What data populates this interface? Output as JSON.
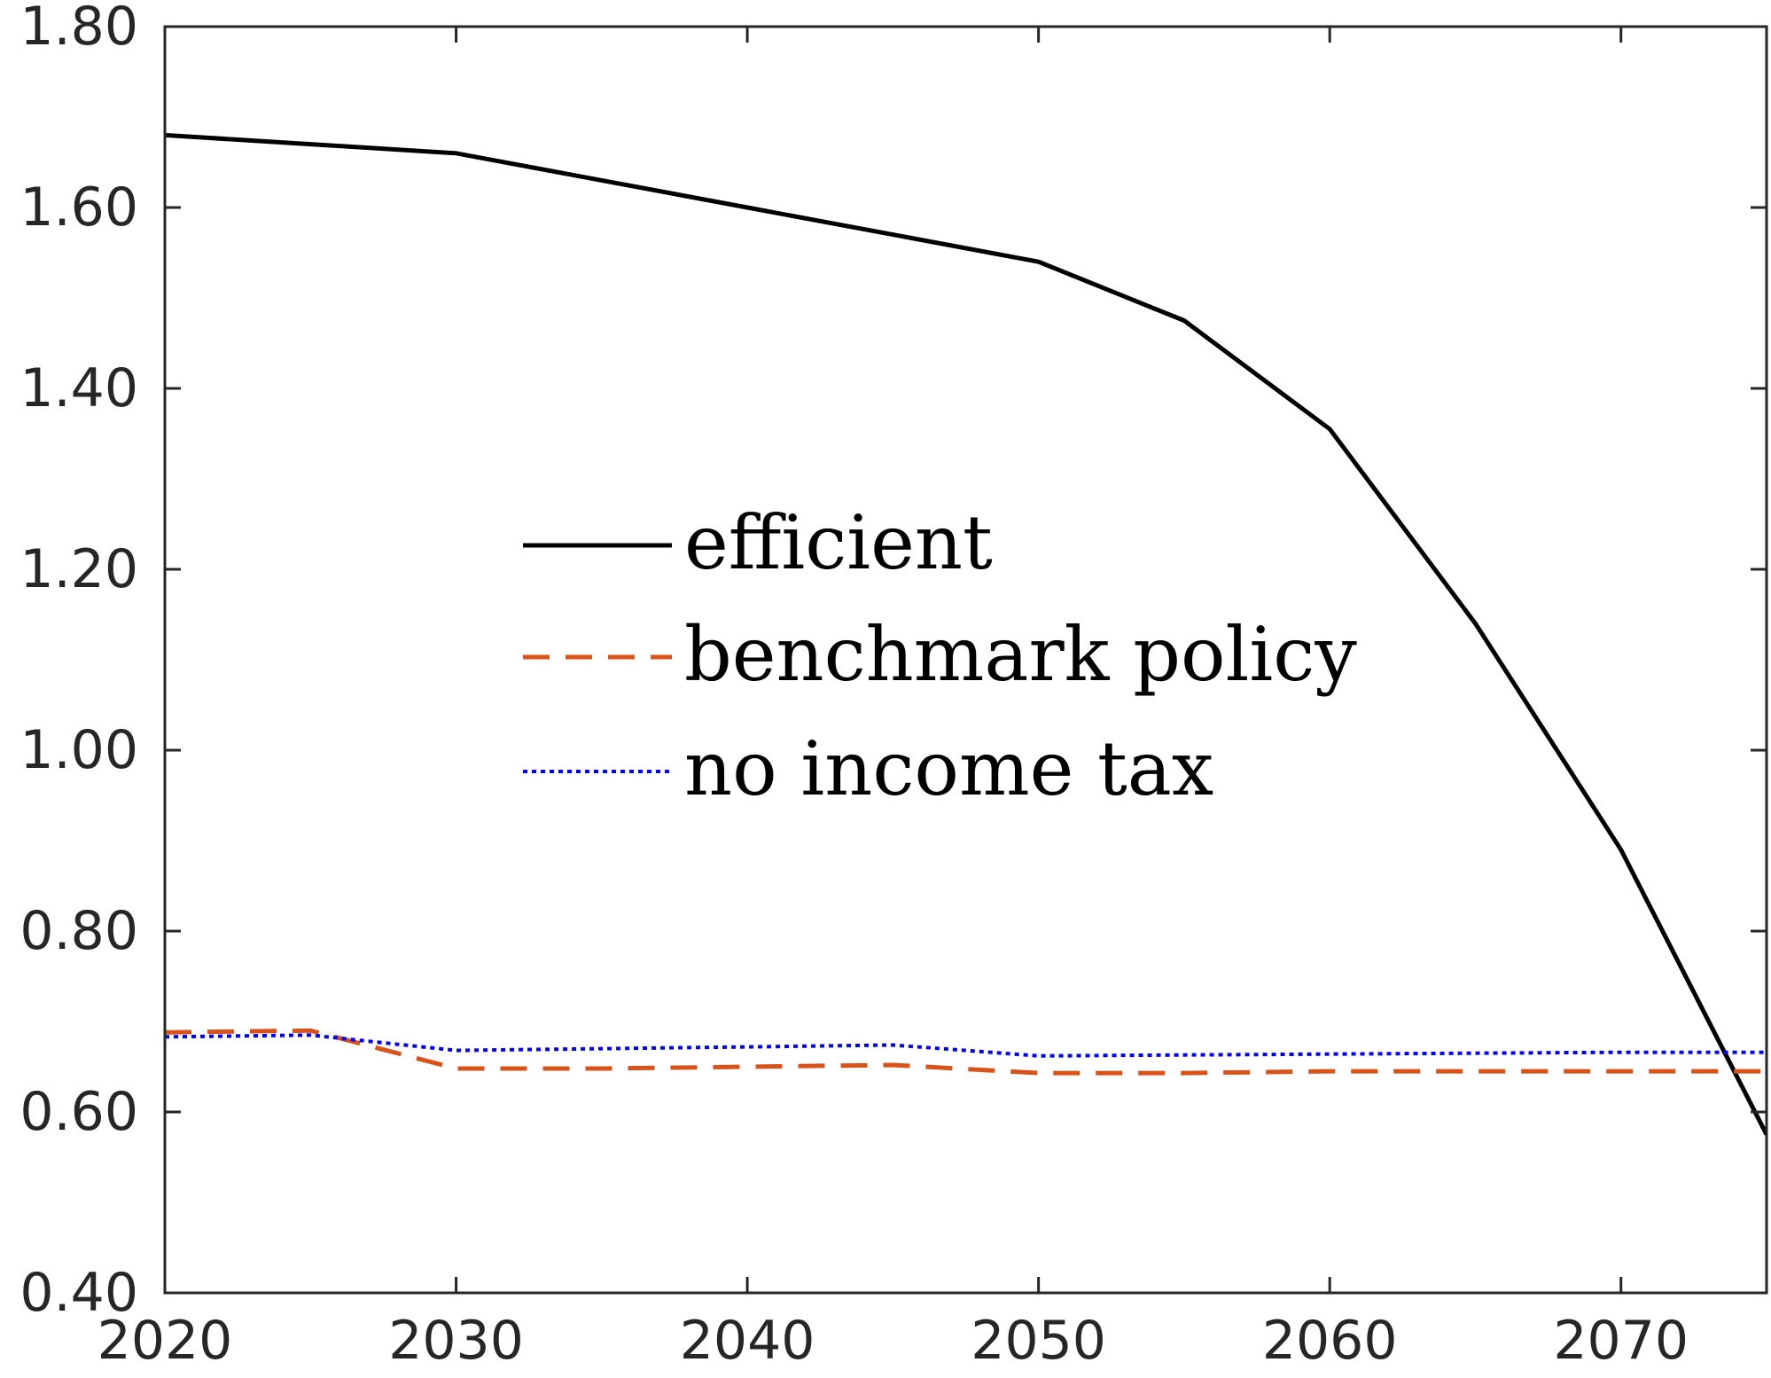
{
  "chart_data": {
    "type": "line",
    "title": "",
    "xlabel": "",
    "ylabel": "",
    "xlim": [
      2020,
      2075
    ],
    "ylim": [
      0.4,
      1.8
    ],
    "xticks": [
      2020,
      2030,
      2040,
      2050,
      2060,
      2070
    ],
    "xtick_labels": [
      "2020",
      "2030",
      "2040",
      "2050",
      "2060",
      "2070"
    ],
    "yticks": [
      0.4,
      0.6,
      0.8,
      1.0,
      1.2,
      1.4,
      1.6,
      1.8
    ],
    "ytick_labels": [
      "0.40",
      "0.60",
      "0.80",
      "1.00",
      "1.20",
      "1.40",
      "1.60",
      "1.80"
    ],
    "grid": false,
    "legend_position": "center",
    "series": [
      {
        "name": "efficient",
        "color": "#000000",
        "style": "solid",
        "x": [
          2020,
          2025,
          2030,
          2035,
          2040,
          2045,
          2050,
          2055,
          2060,
          2065,
          2070,
          2075
        ],
        "y": [
          1.68,
          1.67,
          1.66,
          1.63,
          1.6,
          1.57,
          1.54,
          1.475,
          1.355,
          1.14,
          0.89,
          0.575
        ]
      },
      {
        "name": "benchmark policy",
        "color": "#D95319",
        "style": "dashed",
        "x": [
          2020,
          2025,
          2030,
          2035,
          2040,
          2045,
          2050,
          2055,
          2060,
          2065,
          2070,
          2075
        ],
        "y": [
          0.688,
          0.69,
          0.648,
          0.648,
          0.65,
          0.652,
          0.643,
          0.643,
          0.645,
          0.645,
          0.645,
          0.645
        ]
      },
      {
        "name": "no income tax",
        "color": "#0000FF",
        "style": "dotted",
        "x": [
          2020,
          2025,
          2030,
          2035,
          2040,
          2045,
          2050,
          2055,
          2060,
          2065,
          2070,
          2075
        ],
        "y": [
          0.683,
          0.685,
          0.668,
          0.67,
          0.672,
          0.674,
          0.662,
          0.663,
          0.664,
          0.665,
          0.666,
          0.666
        ]
      }
    ]
  }
}
